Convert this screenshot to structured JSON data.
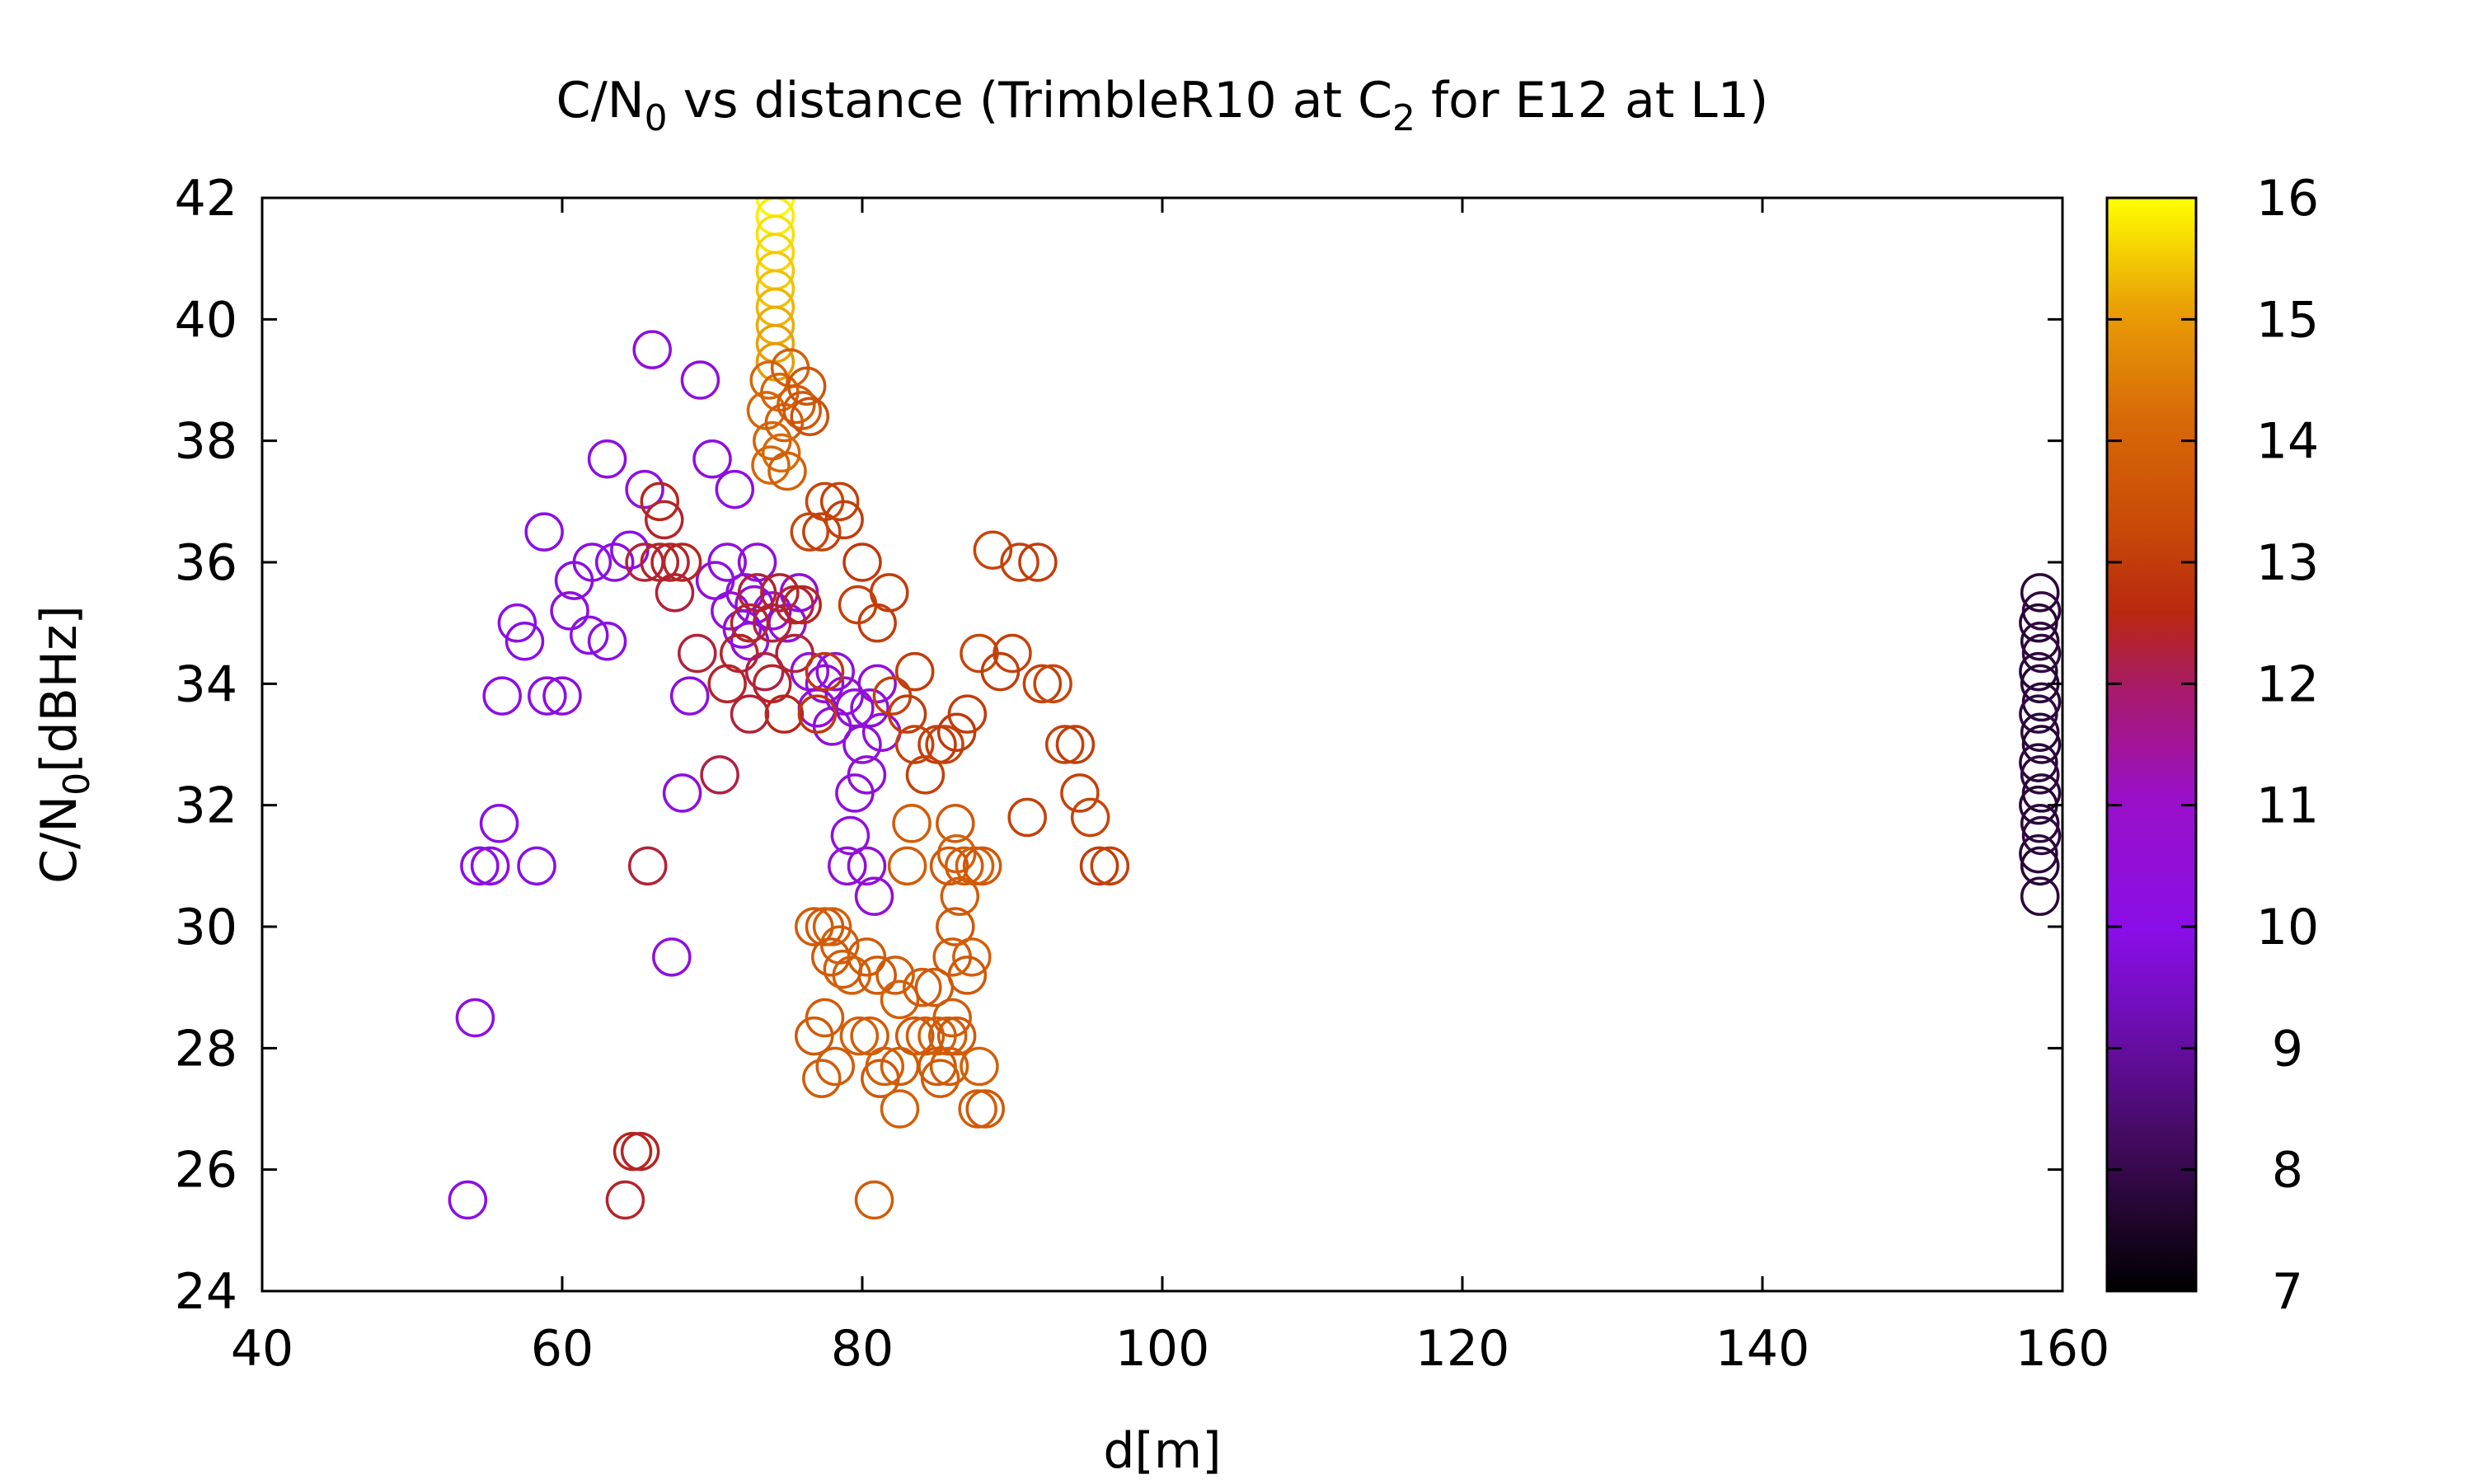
{
  "chart_data": {
    "type": "scatter",
    "title": {
      "prefix": "C/N",
      "sub": "0",
      "middle": " vs distance (TrimbleR10 at C",
      "sub2": "2",
      "suffix": " for E12 at L1)"
    },
    "xlabel": "d[m]",
    "ylabel": {
      "main": "C/N",
      "sub": "0",
      "rest": "[dBHz]"
    },
    "xlim": [
      40,
      160
    ],
    "ylim": [
      24,
      42
    ],
    "xticks": [
      "40",
      "60",
      "80",
      "100",
      "120",
      "140",
      "160"
    ],
    "yticks": [
      "24",
      "26",
      "28",
      "30",
      "32",
      "34",
      "36",
      "38",
      "40",
      "42"
    ],
    "colorbar": {
      "range": [
        7,
        16
      ],
      "ticks": [
        "7",
        "8",
        "9",
        "10",
        "11",
        "12",
        "13",
        "14",
        "15",
        "16"
      ]
    },
    "grid": false,
    "marker": "open-circle",
    "points": [
      {
        "x": 74.2,
        "y": 42.0,
        "c": 15.9
      },
      {
        "x": 74.2,
        "y": 41.7,
        "c": 15.8
      },
      {
        "x": 74.2,
        "y": 41.4,
        "c": 15.7
      },
      {
        "x": 74.2,
        "y": 41.1,
        "c": 15.6
      },
      {
        "x": 74.2,
        "y": 40.8,
        "c": 15.5
      },
      {
        "x": 74.2,
        "y": 40.5,
        "c": 15.4
      },
      {
        "x": 74.2,
        "y": 40.2,
        "c": 15.3
      },
      {
        "x": 74.2,
        "y": 39.9,
        "c": 15.2
      },
      {
        "x": 74.2,
        "y": 39.6,
        "c": 15.1
      },
      {
        "x": 74.2,
        "y": 39.3,
        "c": 15.0
      },
      {
        "x": 73.8,
        "y": 39.0,
        "c": 14.1
      },
      {
        "x": 74.5,
        "y": 38.8,
        "c": 14.0
      },
      {
        "x": 75.2,
        "y": 39.2,
        "c": 13.9
      },
      {
        "x": 73.6,
        "y": 38.5,
        "c": 14.1
      },
      {
        "x": 74.8,
        "y": 38.3,
        "c": 13.9
      },
      {
        "x": 75.6,
        "y": 38.6,
        "c": 13.8
      },
      {
        "x": 74.0,
        "y": 38.0,
        "c": 14.0
      },
      {
        "x": 74.6,
        "y": 37.8,
        "c": 14.2
      },
      {
        "x": 73.9,
        "y": 37.6,
        "c": 14.1
      },
      {
        "x": 76.0,
        "y": 38.5,
        "c": 13.7
      },
      {
        "x": 75.0,
        "y": 37.5,
        "c": 13.9
      },
      {
        "x": 76.3,
        "y": 38.9,
        "c": 13.6
      },
      {
        "x": 76.5,
        "y": 38.4,
        "c": 13.5
      },
      {
        "x": 66.0,
        "y": 39.5,
        "c": 10.2
      },
      {
        "x": 69.2,
        "y": 39.0,
        "c": 10.3
      },
      {
        "x": 63.0,
        "y": 37.7,
        "c": 10.1
      },
      {
        "x": 70.0,
        "y": 37.7,
        "c": 10.2
      },
      {
        "x": 65.5,
        "y": 37.2,
        "c": 10.3
      },
      {
        "x": 71.5,
        "y": 37.2,
        "c": 10.2
      },
      {
        "x": 58.8,
        "y": 36.5,
        "c": 10.0
      },
      {
        "x": 64.5,
        "y": 36.2,
        "c": 10.1
      },
      {
        "x": 62.0,
        "y": 36.0,
        "c": 10.2
      },
      {
        "x": 63.5,
        "y": 36.0,
        "c": 10.0
      },
      {
        "x": 60.8,
        "y": 35.7,
        "c": 10.1
      },
      {
        "x": 60.5,
        "y": 35.2,
        "c": 10.2
      },
      {
        "x": 57.0,
        "y": 35.0,
        "c": 10.1
      },
      {
        "x": 57.5,
        "y": 34.7,
        "c": 10.0
      },
      {
        "x": 61.8,
        "y": 34.8,
        "c": 10.1
      },
      {
        "x": 63.0,
        "y": 34.7,
        "c": 10.0
      },
      {
        "x": 56.0,
        "y": 33.8,
        "c": 10.0
      },
      {
        "x": 59.0,
        "y": 33.8,
        "c": 10.1
      },
      {
        "x": 60.0,
        "y": 33.8,
        "c": 10.2
      },
      {
        "x": 68.5,
        "y": 33.8,
        "c": 10.2
      },
      {
        "x": 55.8,
        "y": 31.7,
        "c": 10.1
      },
      {
        "x": 54.5,
        "y": 31.0,
        "c": 10.0
      },
      {
        "x": 55.2,
        "y": 31.0,
        "c": 10.1
      },
      {
        "x": 58.3,
        "y": 31.0,
        "c": 10.0
      },
      {
        "x": 68.0,
        "y": 32.2,
        "c": 10.2
      },
      {
        "x": 67.3,
        "y": 29.5,
        "c": 10.3
      },
      {
        "x": 54.2,
        "y": 28.5,
        "c": 10.1
      },
      {
        "x": 53.7,
        "y": 25.5,
        "c": 10.0
      },
      {
        "x": 71.0,
        "y": 36.0,
        "c": 10.4
      },
      {
        "x": 73.0,
        "y": 36.0,
        "c": 10.5
      },
      {
        "x": 70.2,
        "y": 35.7,
        "c": 10.3
      },
      {
        "x": 72.2,
        "y": 35.5,
        "c": 10.4
      },
      {
        "x": 71.2,
        "y": 35.2,
        "c": 10.5
      },
      {
        "x": 72.8,
        "y": 35.3,
        "c": 10.4
      },
      {
        "x": 74.0,
        "y": 35.2,
        "c": 10.4
      },
      {
        "x": 75.0,
        "y": 35.0,
        "c": 10.5
      },
      {
        "x": 72.0,
        "y": 34.9,
        "c": 10.3
      },
      {
        "x": 72.5,
        "y": 34.7,
        "c": 10.4
      },
      {
        "x": 75.8,
        "y": 35.5,
        "c": 10.5
      },
      {
        "x": 76.5,
        "y": 34.2,
        "c": 10.4
      },
      {
        "x": 77.5,
        "y": 34.0,
        "c": 10.5
      },
      {
        "x": 78.2,
        "y": 34.2,
        "c": 10.3
      },
      {
        "x": 78.8,
        "y": 33.8,
        "c": 10.4
      },
      {
        "x": 77.0,
        "y": 33.6,
        "c": 10.5
      },
      {
        "x": 78.0,
        "y": 33.3,
        "c": 10.4
      },
      {
        "x": 79.5,
        "y": 33.6,
        "c": 10.5
      },
      {
        "x": 80.5,
        "y": 33.6,
        "c": 10.3
      },
      {
        "x": 80.0,
        "y": 33.0,
        "c": 10.4
      },
      {
        "x": 81.0,
        "y": 34.0,
        "c": 10.5
      },
      {
        "x": 81.3,
        "y": 33.2,
        "c": 10.4
      },
      {
        "x": 80.3,
        "y": 32.5,
        "c": 10.5
      },
      {
        "x": 79.5,
        "y": 32.2,
        "c": 10.3
      },
      {
        "x": 79.2,
        "y": 31.5,
        "c": 10.4
      },
      {
        "x": 79.0,
        "y": 31.0,
        "c": 10.5
      },
      {
        "x": 80.3,
        "y": 31.0,
        "c": 10.4
      },
      {
        "x": 80.8,
        "y": 30.5,
        "c": 10.5
      },
      {
        "x": 73.0,
        "y": 35.5,
        "c": 12.3
      },
      {
        "x": 74.5,
        "y": 35.5,
        "c": 12.4
      },
      {
        "x": 75.5,
        "y": 35.3,
        "c": 12.3
      },
      {
        "x": 76.0,
        "y": 35.3,
        "c": 12.5
      },
      {
        "x": 72.5,
        "y": 35.0,
        "c": 12.4
      },
      {
        "x": 74.0,
        "y": 35.0,
        "c": 12.3
      },
      {
        "x": 71.8,
        "y": 34.5,
        "c": 12.4
      },
      {
        "x": 73.5,
        "y": 34.2,
        "c": 12.2
      },
      {
        "x": 75.5,
        "y": 34.5,
        "c": 12.3
      },
      {
        "x": 74.0,
        "y": 34.0,
        "c": 12.4
      },
      {
        "x": 72.5,
        "y": 33.5,
        "c": 12.3
      },
      {
        "x": 74.8,
        "y": 33.5,
        "c": 12.5
      },
      {
        "x": 71.0,
        "y": 34.0,
        "c": 12.4
      },
      {
        "x": 69.0,
        "y": 34.5,
        "c": 12.3
      },
      {
        "x": 70.5,
        "y": 32.5,
        "c": 12.2
      },
      {
        "x": 66.5,
        "y": 37.0,
        "c": 12.5
      },
      {
        "x": 66.8,
        "y": 36.7,
        "c": 12.4
      },
      {
        "x": 65.5,
        "y": 36.0,
        "c": 12.3
      },
      {
        "x": 67.2,
        "y": 36.0,
        "c": 12.4
      },
      {
        "x": 68.0,
        "y": 36.0,
        "c": 12.5
      },
      {
        "x": 67.5,
        "y": 35.5,
        "c": 12.3
      },
      {
        "x": 66.5,
        "y": 36.0,
        "c": 12.4
      },
      {
        "x": 65.7,
        "y": 31.0,
        "c": 12.3
      },
      {
        "x": 64.7,
        "y": 26.3,
        "c": 12.5
      },
      {
        "x": 65.2,
        "y": 26.3,
        "c": 12.4
      },
      {
        "x": 64.2,
        "y": 25.5,
        "c": 12.4
      },
      {
        "x": 77.5,
        "y": 37.0,
        "c": 13.2
      },
      {
        "x": 78.5,
        "y": 37.0,
        "c": 13.1
      },
      {
        "x": 78.8,
        "y": 36.7,
        "c": 13.0
      },
      {
        "x": 76.5,
        "y": 36.5,
        "c": 13.2
      },
      {
        "x": 77.3,
        "y": 36.5,
        "c": 13.1
      },
      {
        "x": 80.0,
        "y": 36.0,
        "c": 12.9
      },
      {
        "x": 81.8,
        "y": 35.5,
        "c": 13.0
      },
      {
        "x": 79.7,
        "y": 35.3,
        "c": 13.1
      },
      {
        "x": 81.0,
        "y": 35.0,
        "c": 13.0
      },
      {
        "x": 77.5,
        "y": 34.2,
        "c": 12.9
      },
      {
        "x": 83.5,
        "y": 34.2,
        "c": 13.0
      },
      {
        "x": 82.0,
        "y": 33.8,
        "c": 13.1
      },
      {
        "x": 83.0,
        "y": 33.5,
        "c": 13.0
      },
      {
        "x": 77.0,
        "y": 33.5,
        "c": 12.9
      },
      {
        "x": 83.5,
        "y": 33.0,
        "c": 13.1
      },
      {
        "x": 85.0,
        "y": 33.0,
        "c": 13.0
      },
      {
        "x": 85.5,
        "y": 33.0,
        "c": 13.1
      },
      {
        "x": 86.3,
        "y": 33.2,
        "c": 12.9
      },
      {
        "x": 87.0,
        "y": 33.5,
        "c": 13.0
      },
      {
        "x": 84.2,
        "y": 32.5,
        "c": 13.1
      },
      {
        "x": 88.7,
        "y": 36.2,
        "c": 13.2
      },
      {
        "x": 90.5,
        "y": 36.0,
        "c": 13.1
      },
      {
        "x": 91.7,
        "y": 36.0,
        "c": 13.0
      },
      {
        "x": 87.8,
        "y": 34.5,
        "c": 13.2
      },
      {
        "x": 90.0,
        "y": 34.5,
        "c": 13.1
      },
      {
        "x": 89.2,
        "y": 34.2,
        "c": 13.0
      },
      {
        "x": 92.0,
        "y": 34.0,
        "c": 13.1
      },
      {
        "x": 92.7,
        "y": 34.0,
        "c": 13.2
      },
      {
        "x": 93.5,
        "y": 33.0,
        "c": 13.1
      },
      {
        "x": 94.2,
        "y": 33.0,
        "c": 13.0
      },
      {
        "x": 94.5,
        "y": 32.2,
        "c": 13.1
      },
      {
        "x": 95.2,
        "y": 31.8,
        "c": 13.2
      },
      {
        "x": 91.0,
        "y": 31.8,
        "c": 13.1
      },
      {
        "x": 95.8,
        "y": 31.0,
        "c": 13.0
      },
      {
        "x": 96.5,
        "y": 31.0,
        "c": 13.1
      },
      {
        "x": 83.3,
        "y": 31.7,
        "c": 13.8
      },
      {
        "x": 86.2,
        "y": 31.7,
        "c": 13.7
      },
      {
        "x": 86.3,
        "y": 31.2,
        "c": 13.9
      },
      {
        "x": 83.0,
        "y": 31.0,
        "c": 13.8
      },
      {
        "x": 85.8,
        "y": 31.0,
        "c": 13.7
      },
      {
        "x": 86.8,
        "y": 31.0,
        "c": 13.8
      },
      {
        "x": 87.5,
        "y": 31.0,
        "c": 13.9
      },
      {
        "x": 88.0,
        "y": 31.0,
        "c": 13.7
      },
      {
        "x": 86.5,
        "y": 30.5,
        "c": 13.8
      },
      {
        "x": 86.2,
        "y": 30.0,
        "c": 13.7
      },
      {
        "x": 86.0,
        "y": 29.5,
        "c": 13.8
      },
      {
        "x": 87.3,
        "y": 29.5,
        "c": 13.9
      },
      {
        "x": 87.0,
        "y": 29.2,
        "c": 13.7
      },
      {
        "x": 76.8,
        "y": 30.0,
        "c": 13.8
      },
      {
        "x": 77.5,
        "y": 30.0,
        "c": 13.7
      },
      {
        "x": 78.0,
        "y": 30.0,
        "c": 13.9
      },
      {
        "x": 78.5,
        "y": 29.7,
        "c": 13.8
      },
      {
        "x": 77.9,
        "y": 29.5,
        "c": 13.7
      },
      {
        "x": 78.7,
        "y": 29.3,
        "c": 13.8
      },
      {
        "x": 79.3,
        "y": 29.2,
        "c": 13.9
      },
      {
        "x": 80.3,
        "y": 29.5,
        "c": 13.8
      },
      {
        "x": 81.0,
        "y": 29.2,
        "c": 13.7
      },
      {
        "x": 82.2,
        "y": 29.2,
        "c": 13.8
      },
      {
        "x": 82.5,
        "y": 28.8,
        "c": 13.9
      },
      {
        "x": 84.0,
        "y": 29.0,
        "c": 13.8
      },
      {
        "x": 84.8,
        "y": 29.0,
        "c": 13.7
      },
      {
        "x": 86.0,
        "y": 28.5,
        "c": 13.8
      },
      {
        "x": 76.8,
        "y": 28.2,
        "c": 13.7
      },
      {
        "x": 77.5,
        "y": 28.5,
        "c": 13.8
      },
      {
        "x": 79.8,
        "y": 28.2,
        "c": 13.9
      },
      {
        "x": 80.5,
        "y": 28.2,
        "c": 13.8
      },
      {
        "x": 83.5,
        "y": 28.2,
        "c": 13.7
      },
      {
        "x": 84.2,
        "y": 28.2,
        "c": 13.8
      },
      {
        "x": 85.0,
        "y": 28.2,
        "c": 13.9
      },
      {
        "x": 85.7,
        "y": 28.2,
        "c": 13.8
      },
      {
        "x": 86.3,
        "y": 28.2,
        "c": 13.7
      },
      {
        "x": 78.2,
        "y": 27.7,
        "c": 13.8
      },
      {
        "x": 81.5,
        "y": 27.7,
        "c": 13.9
      },
      {
        "x": 82.5,
        "y": 27.7,
        "c": 13.8
      },
      {
        "x": 85.0,
        "y": 27.7,
        "c": 13.7
      },
      {
        "x": 85.8,
        "y": 27.7,
        "c": 13.8
      },
      {
        "x": 87.8,
        "y": 27.7,
        "c": 13.9
      },
      {
        "x": 77.3,
        "y": 27.5,
        "c": 13.8
      },
      {
        "x": 81.2,
        "y": 27.5,
        "c": 13.7
      },
      {
        "x": 85.2,
        "y": 27.5,
        "c": 13.8
      },
      {
        "x": 82.5,
        "y": 27.0,
        "c": 13.9
      },
      {
        "x": 87.7,
        "y": 27.0,
        "c": 13.8
      },
      {
        "x": 88.2,
        "y": 27.0,
        "c": 13.7
      },
      {
        "x": 80.8,
        "y": 25.5,
        "c": 13.8
      },
      {
        "x": 158.5,
        "y": 35.5,
        "c": 7.8
      },
      {
        "x": 158.6,
        "y": 35.2,
        "c": 7.9
      },
      {
        "x": 158.4,
        "y": 35.0,
        "c": 7.7
      },
      {
        "x": 158.5,
        "y": 34.7,
        "c": 7.8
      },
      {
        "x": 158.6,
        "y": 34.5,
        "c": 7.9
      },
      {
        "x": 158.4,
        "y": 34.2,
        "c": 7.8
      },
      {
        "x": 158.5,
        "y": 34.0,
        "c": 7.7
      },
      {
        "x": 158.6,
        "y": 33.7,
        "c": 7.8
      },
      {
        "x": 158.4,
        "y": 33.5,
        "c": 7.9
      },
      {
        "x": 158.5,
        "y": 33.2,
        "c": 7.8
      },
      {
        "x": 158.6,
        "y": 33.0,
        "c": 7.7
      },
      {
        "x": 158.4,
        "y": 32.7,
        "c": 7.8
      },
      {
        "x": 158.5,
        "y": 32.5,
        "c": 7.9
      },
      {
        "x": 158.6,
        "y": 32.2,
        "c": 7.8
      },
      {
        "x": 158.4,
        "y": 32.0,
        "c": 7.7
      },
      {
        "x": 158.5,
        "y": 31.7,
        "c": 7.8
      },
      {
        "x": 158.6,
        "y": 31.5,
        "c": 7.9
      },
      {
        "x": 158.4,
        "y": 31.2,
        "c": 7.8
      },
      {
        "x": 158.5,
        "y": 31.0,
        "c": 7.7
      },
      {
        "x": 158.5,
        "y": 30.5,
        "c": 7.8
      }
    ]
  }
}
